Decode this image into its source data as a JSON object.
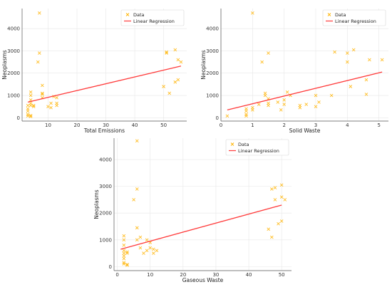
{
  "colors": {
    "data": "#ffb300",
    "regression": "#ff3b3b",
    "grid": "#e7e7e7",
    "axis": "#555555"
  },
  "legend": {
    "data_label": "Data",
    "regression_label": "Linear Regression"
  },
  "chart_data": [
    {
      "type": "scatter",
      "xlabel": "Total Emissions",
      "ylabel": "Neoplasms",
      "xlim": [
        1,
        58
      ],
      "ylim": [
        -150,
        4900
      ],
      "xticks": [
        "10",
        "20",
        "30",
        "40",
        "50"
      ],
      "yticks": [
        "0",
        "1000",
        "2000",
        "3000",
        "4000"
      ],
      "grid": true,
      "legend_position": "top-right",
      "points": [
        [
          7,
          4700
        ],
        [
          7,
          2900
        ],
        [
          6.5,
          2500
        ],
        [
          8,
          1450
        ],
        [
          8,
          1100
        ],
        [
          8,
          1050
        ],
        [
          8,
          900
        ],
        [
          4,
          1150
        ],
        [
          4,
          1000
        ],
        [
          4,
          800
        ],
        [
          4,
          650
        ],
        [
          4,
          550
        ],
        [
          5,
          550
        ],
        [
          5,
          500
        ],
        [
          3,
          550
        ],
        [
          3,
          400
        ],
        [
          3,
          300
        ],
        [
          3,
          150
        ],
        [
          3,
          80
        ],
        [
          4,
          100
        ],
        [
          4,
          50
        ],
        [
          10,
          500
        ],
        [
          11,
          650
        ],
        [
          11,
          450
        ],
        [
          12,
          950
        ],
        [
          13,
          900
        ],
        [
          13,
          650
        ],
        [
          13,
          550
        ],
        [
          50,
          1400
        ],
        [
          51,
          2900
        ],
        [
          51,
          2950
        ],
        [
          52,
          1100
        ],
        [
          54,
          3050
        ],
        [
          54,
          1600
        ],
        [
          55,
          1700
        ],
        [
          55,
          2600
        ],
        [
          56,
          2500
        ]
      ],
      "regression": {
        "x": [
          3,
          56
        ],
        "y": [
          700,
          2320
        ]
      }
    },
    {
      "type": "scatter",
      "xlabel": "Solid Waste",
      "ylabel": "Neoplasms",
      "xlim": [
        0,
        5.3
      ],
      "ylim": [
        -150,
        4900
      ],
      "xticks": [
        "0",
        "1",
        "2",
        "3",
        "4",
        "5"
      ],
      "yticks": [
        "0",
        "1000",
        "2000",
        "3000",
        "4000"
      ],
      "grid": true,
      "legend_position": "top-right",
      "points": [
        [
          1,
          4700
        ],
        [
          1.5,
          2900
        ],
        [
          1.3,
          2500
        ],
        [
          1.4,
          1100
        ],
        [
          1.4,
          1000
        ],
        [
          1.5,
          850
        ],
        [
          1.5,
          650
        ],
        [
          1.5,
          550
        ],
        [
          0.8,
          400
        ],
        [
          0.8,
          300
        ],
        [
          0.8,
          150
        ],
        [
          0.8,
          80
        ],
        [
          0.2,
          80
        ],
        [
          1.0,
          350
        ],
        [
          1.0,
          450
        ],
        [
          1.2,
          600
        ],
        [
          1.8,
          700
        ],
        [
          1.9,
          350
        ],
        [
          2.0,
          800
        ],
        [
          2.0,
          600
        ],
        [
          2.1,
          1150
        ],
        [
          2.2,
          1000
        ],
        [
          2.5,
          550
        ],
        [
          2.5,
          450
        ],
        [
          2.7,
          600
        ],
        [
          3.0,
          1000
        ],
        [
          3.1,
          700
        ],
        [
          3.0,
          500
        ],
        [
          3.5,
          1000
        ],
        [
          3.6,
          2950
        ],
        [
          4.0,
          2900
        ],
        [
          4.0,
          2500
        ],
        [
          4.1,
          1400
        ],
        [
          4.2,
          3050
        ],
        [
          4.6,
          1050
        ],
        [
          4.6,
          1700
        ],
        [
          4.7,
          2600
        ],
        [
          5.1,
          2600
        ]
      ],
      "regression": {
        "x": [
          0.2,
          5.1
        ],
        "y": [
          350,
          2050
        ]
      }
    },
    {
      "type": "scatter",
      "xlabel": "Gaseous Waste",
      "ylabel": "Neoplasms",
      "xlim": [
        -1,
        53
      ],
      "ylim": [
        -150,
        4800
      ],
      "xticks": [
        "0",
        "10",
        "20",
        "30",
        "40",
        "50"
      ],
      "yticks": [
        "0",
        "1000",
        "2000",
        "3000",
        "4000"
      ],
      "grid": true,
      "legend_position": "top-right",
      "points": [
        [
          6,
          4700
        ],
        [
          6,
          2900
        ],
        [
          5,
          2500
        ],
        [
          6,
          1450
        ],
        [
          7,
          1100
        ],
        [
          6,
          1000
        ],
        [
          7,
          700
        ],
        [
          2,
          1150
        ],
        [
          2,
          1000
        ],
        [
          2,
          800
        ],
        [
          2,
          600
        ],
        [
          2,
          500
        ],
        [
          3,
          550
        ],
        [
          3,
          500
        ],
        [
          2,
          400
        ],
        [
          2,
          300
        ],
        [
          2,
          150
        ],
        [
          3,
          80
        ],
        [
          3,
          50
        ],
        [
          2,
          100
        ],
        [
          8,
          500
        ],
        [
          9,
          600
        ],
        [
          9,
          1000
        ],
        [
          10,
          900
        ],
        [
          10,
          700
        ],
        [
          11,
          500
        ],
        [
          11,
          650
        ],
        [
          12,
          600
        ],
        [
          46,
          1400
        ],
        [
          47,
          2900
        ],
        [
          47,
          1100
        ],
        [
          48,
          2950
        ],
        [
          48,
          2500
        ],
        [
          49,
          1600
        ],
        [
          50,
          3050
        ],
        [
          50,
          1700
        ],
        [
          50,
          2600
        ],
        [
          51,
          2500
        ]
      ],
      "regression": {
        "x": [
          1,
          50
        ],
        "y": [
          650,
          2300
        ]
      }
    }
  ]
}
